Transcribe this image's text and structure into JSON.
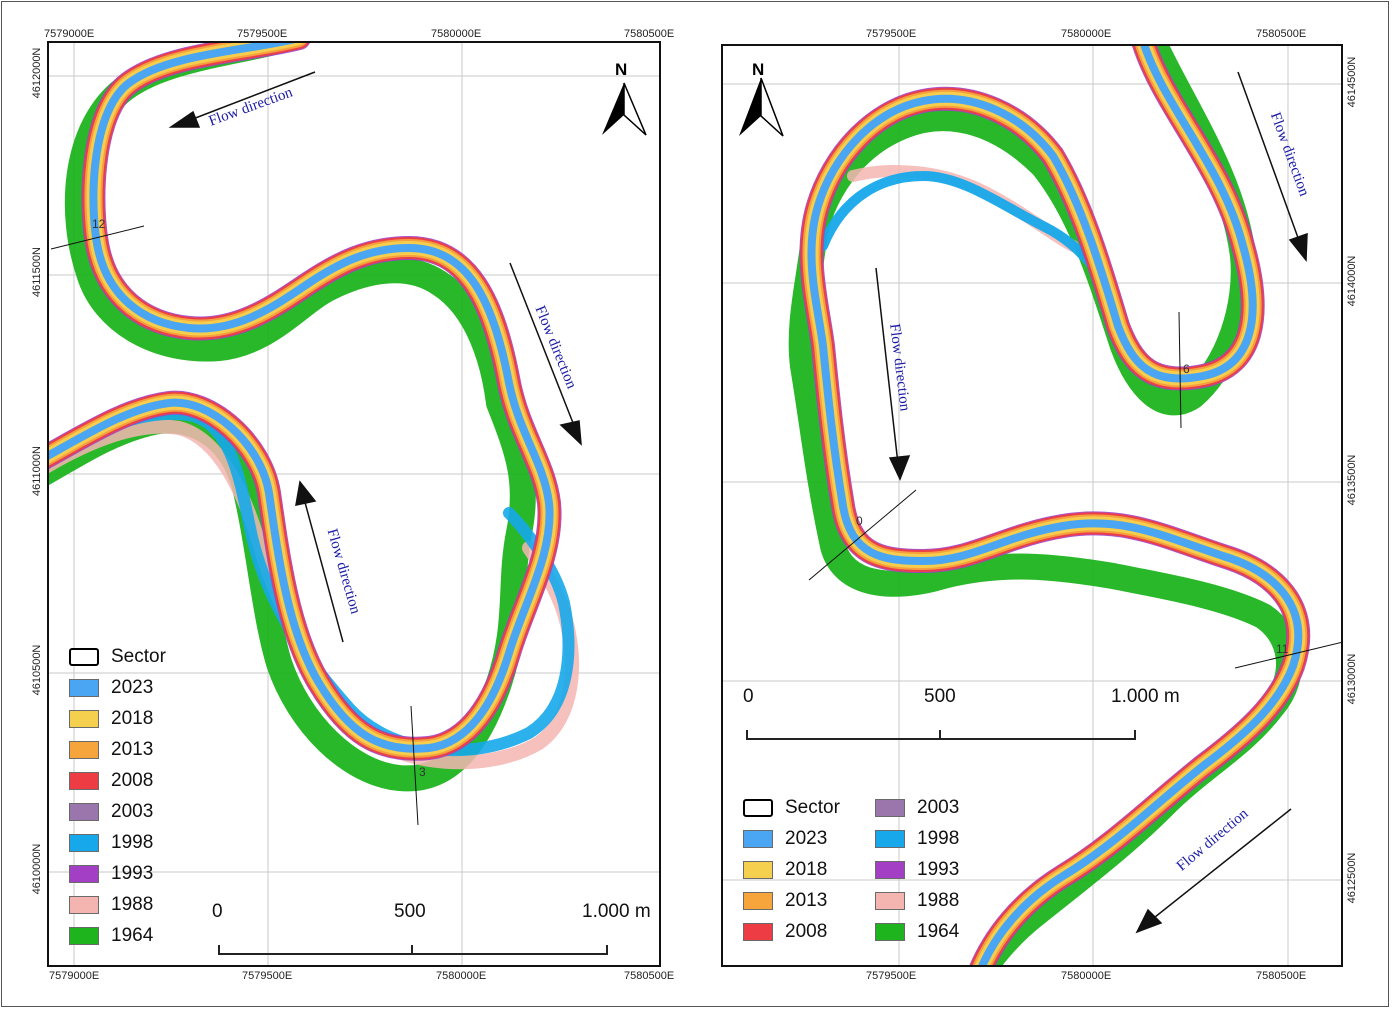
{
  "colors": {
    "c2023": "#4aa6f2",
    "c2018": "#f5d04e",
    "c2013": "#f6a43c",
    "c2008": "#ee3c44",
    "c2003": "#9a76ac",
    "c1998": "#16a8ea",
    "c1993": "#a33fc4",
    "c1988": "#f4b5b1",
    "c1964": "#1eb41e",
    "flow_text": "#1a1aa6"
  },
  "left_map": {
    "easting_labels": [
      "7579000E",
      "7579500E",
      "7580000E",
      "7580500E"
    ],
    "northing_labels": [
      "4612000N",
      "4611500N",
      "4611000N",
      "4610500N",
      "4610000N"
    ],
    "flow_labels": [
      "Flow direction",
      "Flow direction",
      "Flow direction"
    ],
    "north_label": "N",
    "sector_labels": [
      "12",
      "3"
    ],
    "scale": {
      "zero": "0",
      "mid": "500",
      "end": "1.000 m"
    },
    "legend": [
      {
        "label": "Sector",
        "key": "sector"
      },
      {
        "label": "2023",
        "key": "c2023"
      },
      {
        "label": "2018",
        "key": "c2018"
      },
      {
        "label": "2013",
        "key": "c2013"
      },
      {
        "label": "2008",
        "key": "c2008"
      },
      {
        "label": "2003",
        "key": "c2003"
      },
      {
        "label": "1998",
        "key": "c1998"
      },
      {
        "label": "1993",
        "key": "c1993"
      },
      {
        "label": "1988",
        "key": "c1988"
      },
      {
        "label": "1964",
        "key": "c1964"
      }
    ]
  },
  "right_map": {
    "easting_labels": [
      "7579500E",
      "7580000E",
      "7580500E"
    ],
    "northing_labels": [
      "4614500N",
      "4614000N",
      "4613500N",
      "4613000N",
      "4612500N"
    ],
    "flow_labels": [
      "Flow direction",
      "Flow direction",
      "Flow direction"
    ],
    "north_label": "N",
    "sector_labels": [
      "6",
      "0",
      "11"
    ],
    "scale": {
      "zero": "0",
      "mid": "500",
      "end": "1.000 m"
    },
    "legend": [
      {
        "label": "Sector",
        "key": "sector"
      },
      {
        "label": "2023",
        "key": "c2023"
      },
      {
        "label": "2018",
        "key": "c2018"
      },
      {
        "label": "2013",
        "key": "c2013"
      },
      {
        "label": "2008",
        "key": "c2008"
      },
      {
        "label": "2003",
        "key": "c2003"
      },
      {
        "label": "1998",
        "key": "c1998"
      },
      {
        "label": "1993",
        "key": "c1993"
      },
      {
        "label": "1988",
        "key": "c1988"
      },
      {
        "label": "1964",
        "key": "c1964"
      }
    ]
  }
}
